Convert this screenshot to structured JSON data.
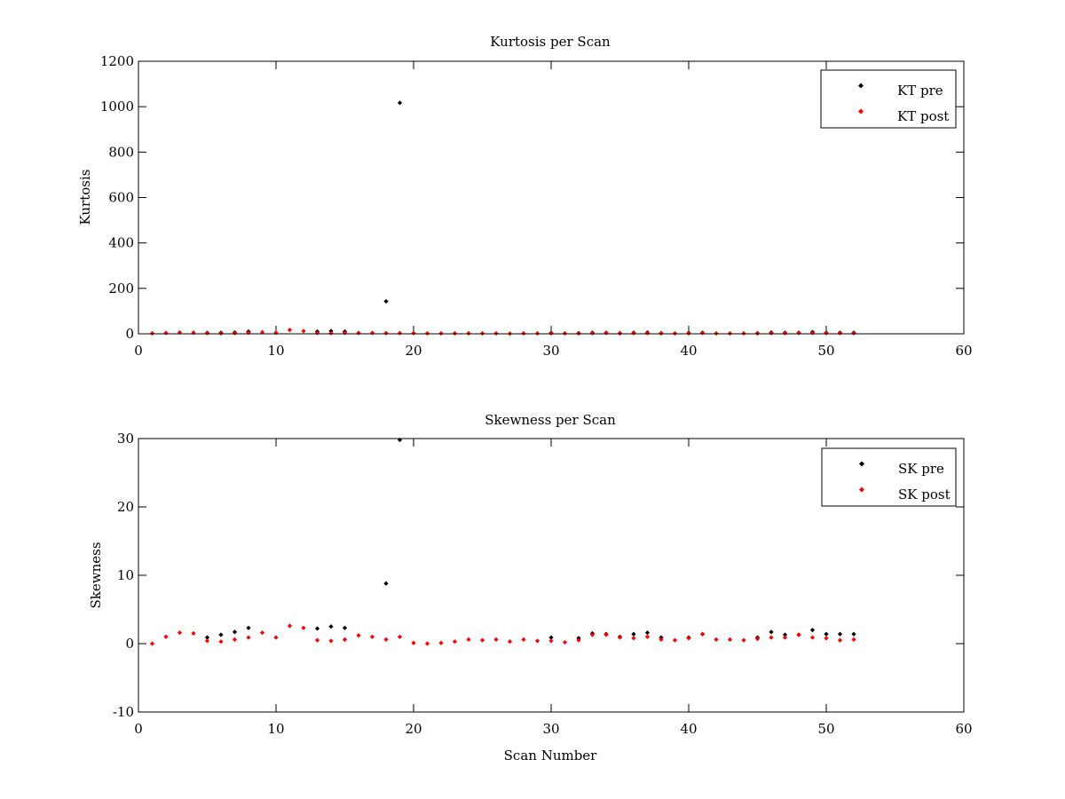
{
  "figure": {
    "background": "#ffffff"
  },
  "chart_data": [
    {
      "type": "scatter",
      "title": "Kurtosis per Scan",
      "xlabel": "",
      "ylabel": "Kurtosis",
      "xlim": [
        0,
        60
      ],
      "ylim": [
        0,
        1200
      ],
      "xticks": [
        0,
        10,
        20,
        30,
        40,
        50,
        60
      ],
      "yticks": [
        0,
        200,
        400,
        600,
        800,
        1000,
        1200
      ],
      "grid": false,
      "legend_position": "top-right",
      "series": [
        {
          "name": "KT pre",
          "color": "#000000",
          "marker": "diamond",
          "x": [
            5,
            6,
            7,
            8,
            13,
            14,
            15,
            18,
            19,
            30,
            32,
            33,
            34,
            35,
            36,
            37,
            38,
            40,
            41,
            45,
            46,
            47,
            48,
            49,
            50,
            51,
            52
          ],
          "y": [
            4,
            5,
            6,
            10,
            10,
            12,
            10,
            143,
            1017,
            4,
            3,
            5,
            5,
            3,
            5,
            6,
            3,
            4,
            5,
            3,
            6,
            5,
            5,
            8,
            5,
            5,
            5
          ]
        },
        {
          "name": "KT post",
          "color": "#ff0000",
          "marker": "diamond",
          "x": [
            1,
            2,
            3,
            4,
            5,
            6,
            7,
            8,
            9,
            10,
            11,
            12,
            13,
            14,
            15,
            16,
            17,
            18,
            19,
            20,
            21,
            22,
            23,
            24,
            25,
            26,
            27,
            28,
            29,
            30,
            31,
            32,
            33,
            34,
            35,
            36,
            37,
            38,
            39,
            40,
            41,
            42,
            43,
            44,
            45,
            46,
            47,
            48,
            49,
            50,
            51,
            52
          ],
          "y": [
            2,
            4,
            6,
            5,
            3,
            2,
            3,
            5,
            7,
            5,
            17,
            12,
            4,
            3,
            4,
            4,
            4,
            3,
            3,
            3,
            2,
            2,
            2,
            2,
            2,
            2,
            1,
            2,
            2,
            2,
            2,
            2,
            3,
            4,
            2,
            3,
            3,
            2,
            2,
            2,
            4,
            2,
            2,
            2,
            2,
            3,
            3,
            4,
            4,
            3,
            3,
            3
          ]
        }
      ]
    },
    {
      "type": "scatter",
      "title": "Skewness per Scan",
      "xlabel": "Scan Number",
      "ylabel": "Skewness",
      "xlim": [
        0,
        60
      ],
      "ylim": [
        -10,
        30
      ],
      "xticks": [
        0,
        10,
        20,
        30,
        40,
        50,
        60
      ],
      "yticks": [
        -10,
        0,
        10,
        20,
        30
      ],
      "grid": false,
      "legend_position": "top-right",
      "series": [
        {
          "name": "SK pre",
          "color": "#000000",
          "marker": "diamond",
          "x": [
            5,
            6,
            7,
            8,
            13,
            14,
            15,
            18,
            19,
            30,
            32,
            33,
            34,
            35,
            36,
            37,
            38,
            40,
            41,
            45,
            46,
            47,
            48,
            49,
            50,
            51,
            52
          ],
          "y": [
            0.9,
            1.3,
            1.7,
            2.3,
            2.2,
            2.5,
            2.3,
            8.8,
            29.8,
            0.9,
            0.8,
            1.5,
            1.4,
            1.0,
            1.4,
            1.6,
            0.9,
            0.9,
            1.4,
            0.9,
            1.7,
            1.3,
            1.3,
            2.0,
            1.4,
            1.4,
            1.4
          ]
        },
        {
          "name": "SK post",
          "color": "#ff0000",
          "marker": "diamond",
          "x": [
            1,
            2,
            3,
            4,
            5,
            6,
            7,
            8,
            9,
            10,
            11,
            12,
            13,
            14,
            15,
            16,
            17,
            18,
            19,
            20,
            21,
            22,
            23,
            24,
            25,
            26,
            27,
            28,
            29,
            30,
            31,
            32,
            33,
            34,
            35,
            36,
            37,
            38,
            39,
            40,
            41,
            42,
            43,
            44,
            45,
            46,
            47,
            48,
            49,
            50,
            51,
            52
          ],
          "y": [
            0.0,
            1.0,
            1.6,
            1.5,
            0.4,
            0.3,
            0.6,
            0.9,
            1.6,
            0.9,
            2.6,
            2.3,
            0.5,
            0.4,
            0.6,
            1.2,
            1.0,
            0.6,
            1.0,
            0.1,
            0.0,
            0.1,
            0.3,
            0.6,
            0.5,
            0.6,
            0.3,
            0.6,
            0.4,
            0.4,
            0.2,
            0.5,
            1.3,
            1.3,
            0.9,
            0.8,
            1.0,
            0.6,
            0.5,
            0.8,
            1.4,
            0.6,
            0.6,
            0.5,
            0.7,
            0.9,
            0.9,
            1.3,
            0.9,
            0.8,
            0.5,
            0.6
          ]
        }
      ]
    }
  ]
}
